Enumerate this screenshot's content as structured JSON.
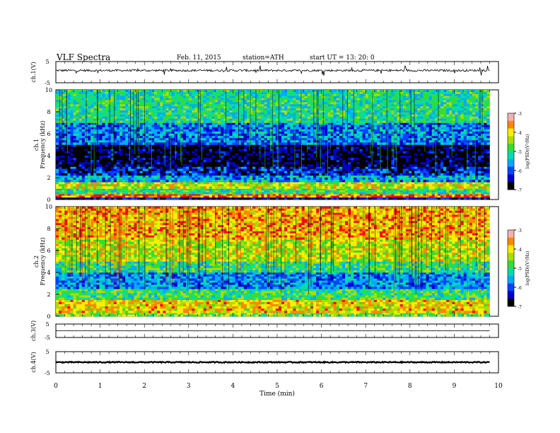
{
  "header": {
    "title": "VLF  Spectra",
    "date": "Feb. 11, 2015",
    "station": "station=ATH",
    "start": "start  UT  =    13: 20: 0"
  },
  "colors": {
    "spectrogram_scale": [
      "#000000",
      "#0000cc",
      "#0044ff",
      "#00aaff",
      "#00ddaa",
      "#33dd33",
      "#aadd00",
      "#ffee00",
      "#ff8800",
      "#ee1111",
      "#ffffff"
    ]
  },
  "chart_data": [
    {
      "type": "line",
      "panel": "waveform",
      "ylabel": "ch.1(V)",
      "ylim": [
        -5,
        5
      ],
      "yticks": [
        "5",
        "-5"
      ],
      "x": [
        0,
        9.8
      ],
      "mean_value": 0.8,
      "spread": 1.0
    },
    {
      "type": "heatmap",
      "panel": "spectrogram",
      "ylabel": "ch.1\nFrequency  (kHz)",
      "ylim": [
        0,
        10
      ],
      "yticks": [
        "0",
        "2",
        "4",
        "6",
        "8",
        "10"
      ],
      "x_range_min": [
        0,
        9.8
      ],
      "colorbar": {
        "label": "log(PSD)(V²/Hz)",
        "ticks": [
          "-3",
          "-4",
          "-5",
          "-6",
          "-7"
        ],
        "range": [
          -7,
          -3
        ]
      },
      "bands": [
        {
          "f": [
            0,
            0.2
          ],
          "value": -6.5
        },
        {
          "f": [
            0.2,
            0.5
          ],
          "value": -3.4
        },
        {
          "f": [
            0.5,
            1.0
          ],
          "value": -5.0
        },
        {
          "f": [
            1.0,
            1.6
          ],
          "value": -4.3
        },
        {
          "f": [
            1.6,
            2.2
          ],
          "value": -5.6
        },
        {
          "f": [
            2.2,
            3.0
          ],
          "value": -6.3
        },
        {
          "f": [
            3.0,
            5.0
          ],
          "value": -6.8
        },
        {
          "f": [
            5.0,
            7.0
          ],
          "value": -5.8
        },
        {
          "f": [
            7.0,
            10.0
          ],
          "value": -5.1
        }
      ]
    },
    {
      "type": "heatmap",
      "panel": "spectrogram",
      "ylabel": "ch.2\nFrequency  (kHz)",
      "ylim": [
        0,
        10
      ],
      "yticks": [
        "0",
        "2",
        "4",
        "6",
        "8",
        "10"
      ],
      "x_range_min": [
        0,
        9.8
      ],
      "colorbar": {
        "label": "log(PSD)(V²/Hz)",
        "ticks": [
          "-3",
          "-4",
          "-5",
          "-6",
          "-7"
        ],
        "range": [
          -7,
          -3
        ]
      },
      "bands": [
        {
          "f": [
            0,
            0.3
          ],
          "value": -4.6
        },
        {
          "f": [
            0.3,
            1.5
          ],
          "value": -4.0
        },
        {
          "f": [
            1.5,
            2.5
          ],
          "value": -4.9
        },
        {
          "f": [
            2.5,
            4.0
          ],
          "value": -5.7
        },
        {
          "f": [
            4.0,
            5.0
          ],
          "value": -5.0
        },
        {
          "f": [
            5.0,
            7.0
          ],
          "value": -4.3
        },
        {
          "f": [
            7.0,
            10.0
          ],
          "value": -3.8
        }
      ]
    },
    {
      "type": "line",
      "panel": "waveform",
      "ylabel": "ch.3(V)",
      "ylim": [
        -5,
        5
      ],
      "yticks": [
        "5",
        "-5"
      ],
      "x": [
        0,
        9.8
      ],
      "mean_value": 0,
      "spread": 0.25
    },
    {
      "type": "line",
      "panel": "waveform",
      "ylabel": "ch.4(V)",
      "ylim": [
        -5,
        5
      ],
      "yticks": [
        "5",
        "-5"
      ],
      "x": [
        0,
        9.8
      ],
      "mean_value": 0,
      "spread": 0.5
    }
  ],
  "xaxis": {
    "label": "Time  (min)",
    "ticks": [
      "0",
      "1",
      "2",
      "3",
      "4",
      "5",
      "6",
      "7",
      "8",
      "9",
      "10"
    ],
    "range": [
      0,
      10
    ]
  }
}
